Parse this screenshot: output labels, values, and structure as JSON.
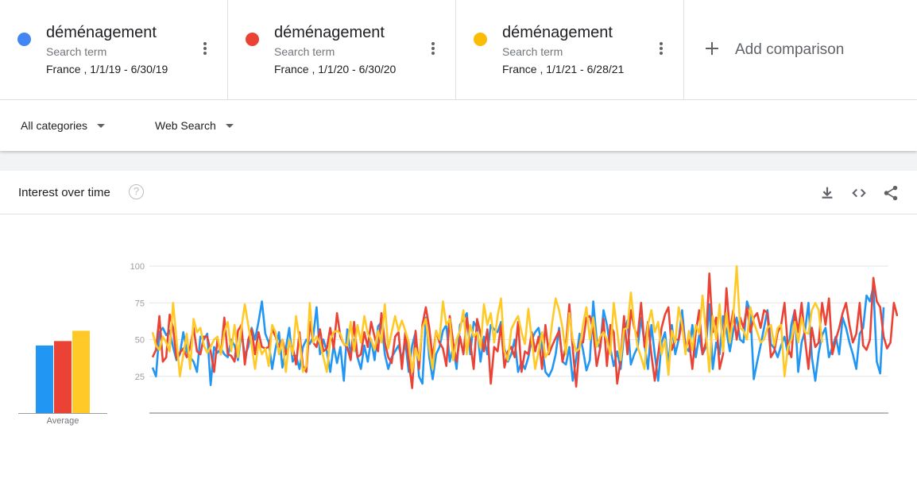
{
  "terms": [
    {
      "name": "déménagement",
      "sub": "Search term",
      "range": "France , 1/1/19 - 6/30/19",
      "color": "#4285f4"
    },
    {
      "name": "déménagement",
      "sub": "Search term",
      "range": "France , 1/1/20 - 6/30/20",
      "color": "#ea4335"
    },
    {
      "name": "déménagement",
      "sub": "Search term",
      "range": "France , 1/1/21 - 6/28/21",
      "color": "#fbbc04"
    }
  ],
  "add_comparison": "Add comparison",
  "filters": {
    "category": "All categories",
    "search_type": "Web Search"
  },
  "card": {
    "title": "Interest over time",
    "help": "?"
  },
  "icons": [
    "download-icon",
    "embed-code-icon",
    "share-icon",
    "help-icon",
    "more-vert-icon",
    "add-icon",
    "dropdown-caret-icon"
  ],
  "chart_data": {
    "type": "line",
    "title": "Interest over time",
    "ylim": [
      0,
      100
    ],
    "yticks": [
      25,
      50,
      75,
      100
    ],
    "grid": true,
    "average": {
      "label": "Average",
      "values": [
        46,
        49,
        56
      ]
    },
    "series": [
      {
        "color": "#2196f3",
        "values": [
          31,
          25,
          55,
          58,
          53,
          56,
          45,
          36,
          40,
          55,
          42,
          38,
          35,
          28,
          52,
          50,
          54,
          19,
          45,
          41,
          44,
          40,
          38,
          50,
          46,
          36,
          55,
          39,
          45,
          58,
          50,
          62,
          76,
          54,
          48,
          30,
          44,
          55,
          31,
          44,
          58,
          35,
          39,
          30,
          45,
          50,
          47,
          52,
          72,
          40,
          50,
          42,
          28,
          46,
          34,
          45,
          22,
          57,
          40,
          50,
          38,
          30,
          46,
          35,
          50,
          36,
          59,
          62,
          40,
          30,
          38,
          42,
          46,
          37,
          48,
          28,
          46,
          55,
          25,
          20,
          65,
          38,
          23,
          40,
          45,
          56,
          60,
          35,
          45,
          30,
          60,
          64,
          68,
          40,
          62,
          58,
          35,
          52,
          40,
          60,
          57,
          55,
          62,
          44,
          35,
          40,
          50,
          28,
          35,
          30,
          38,
          50,
          55,
          58,
          45,
          28,
          25,
          30,
          40,
          58,
          35,
          33,
          45,
          22,
          37,
          54,
          43,
          29,
          36,
          76,
          50,
          44,
          70,
          60,
          44,
          32,
          42,
          30,
          53,
          63,
          33,
          40,
          45,
          65,
          47,
          30,
          60,
          40,
          22,
          48,
          55,
          32,
          60,
          40,
          50,
          70,
          45,
          42,
          60,
          38,
          53,
          40,
          45,
          74,
          30,
          48,
          40,
          66,
          56,
          42,
          56,
          65,
          50,
          48,
          76,
          69,
          23,
          35,
          46,
          58,
          70,
          47,
          44,
          38,
          46,
          52,
          40,
          60,
          70,
          28,
          48,
          56,
          75,
          38,
          22,
          41,
          53,
          58,
          38,
          45,
          52,
          40,
          65,
          58,
          48,
          40,
          30,
          54,
          58,
          80,
          76,
          86,
          35,
          27,
          72
        ]
      },
      {
        "color": "#ea4335",
        "values": [
          38,
          43,
          66,
          35,
          38,
          67,
          58,
          37,
          41,
          44,
          38,
          45,
          58,
          42,
          40,
          52,
          52,
          42,
          28,
          50,
          40,
          65,
          40,
          39,
          35,
          56,
          60,
          33,
          50,
          57,
          40,
          55,
          45,
          44,
          45,
          57,
          52,
          45,
          50,
          40,
          46,
          45,
          33,
          55,
          32,
          28,
          62,
          48,
          45,
          57,
          42,
          44,
          58,
          44,
          68,
          52,
          47,
          45,
          36,
          62,
          38,
          40,
          55,
          45,
          62,
          52,
          42,
          68,
          48,
          38,
          34,
          52,
          55,
          30,
          55,
          35,
          17,
          56,
          30,
          60,
          72,
          58,
          37,
          56,
          48,
          44,
          32,
          66,
          48,
          35,
          52,
          40,
          65,
          48,
          30,
          64,
          54,
          42,
          57,
          20,
          45,
          42,
          60,
          31,
          42,
          45,
          38,
          62,
          28,
          42,
          40,
          55,
          42,
          52,
          30,
          60,
          40,
          46,
          51,
          56,
          35,
          46,
          74,
          44,
          18,
          48,
          48,
          65,
          66,
          56,
          32,
          44,
          64,
          32,
          60,
          55,
          20,
          36,
          66,
          40,
          70,
          58,
          52,
          75,
          45,
          62,
          40,
          22,
          40,
          58,
          67,
          72,
          43,
          50,
          50,
          63,
          44,
          50,
          30,
          55,
          70,
          40,
          48,
          95,
          55,
          65,
          30,
          40,
          85,
          55,
          70,
          50,
          65,
          58,
          72,
          55,
          65,
          68,
          58,
          70,
          68,
          38,
          42,
          55,
          60,
          75,
          44,
          38,
          70,
          55,
          75,
          50,
          30,
          58,
          45,
          48,
          75,
          60,
          78,
          40,
          50,
          58,
          68,
          75,
          60,
          48,
          54,
          75,
          46,
          43,
          50,
          92,
          76,
          72,
          52,
          44,
          48,
          75,
          66
        ]
      },
      {
        "color": "#ffca28",
        "values": [
          55,
          46,
          43,
          52,
          48,
          42,
          75,
          50,
          25,
          40,
          54,
          30,
          64,
          55,
          58,
          46,
          41,
          45,
          50,
          52,
          40,
          55,
          62,
          42,
          60,
          38,
          58,
          74,
          60,
          46,
          30,
          48,
          40,
          44,
          32,
          60,
          55,
          40,
          50,
          28,
          50,
          40,
          66,
          50,
          28,
          32,
          75,
          48,
          52,
          48,
          38,
          28,
          50,
          55,
          56,
          54,
          47,
          46,
          62,
          42,
          60,
          48,
          66,
          54,
          50,
          43,
          56,
          48,
          74,
          44,
          55,
          66,
          56,
          63,
          56,
          48,
          28,
          44,
          36,
          58,
          64,
          44,
          30,
          56,
          50,
          76,
          60,
          64,
          36,
          50,
          56,
          70,
          40,
          60,
          52,
          55,
          44,
          74,
          60,
          68,
          48,
          66,
          78,
          42,
          36,
          57,
          62,
          66,
          55,
          47,
          71,
          50,
          30,
          42,
          55,
          38,
          42,
          62,
          78,
          70,
          58,
          40,
          68,
          50,
          42,
          44,
          60,
          72,
          50,
          65,
          45,
          52,
          55,
          50,
          40,
          75,
          56,
          36,
          57,
          58,
          82,
          60,
          45,
          38,
          30,
          60,
          70,
          55,
          62,
          40,
          50,
          26,
          56,
          48,
          72,
          60,
          40,
          56,
          43,
          60,
          54,
          80,
          55,
          28,
          66,
          50,
          74,
          42,
          68,
          48,
          66,
          100,
          58,
          56,
          50,
          72,
          62,
          55,
          48,
          50,
          58,
          60,
          46,
          58,
          60,
          25,
          45,
          50,
          62,
          48,
          65,
          55,
          54,
          70,
          75,
          70,
          48
        ]
      }
    ]
  }
}
